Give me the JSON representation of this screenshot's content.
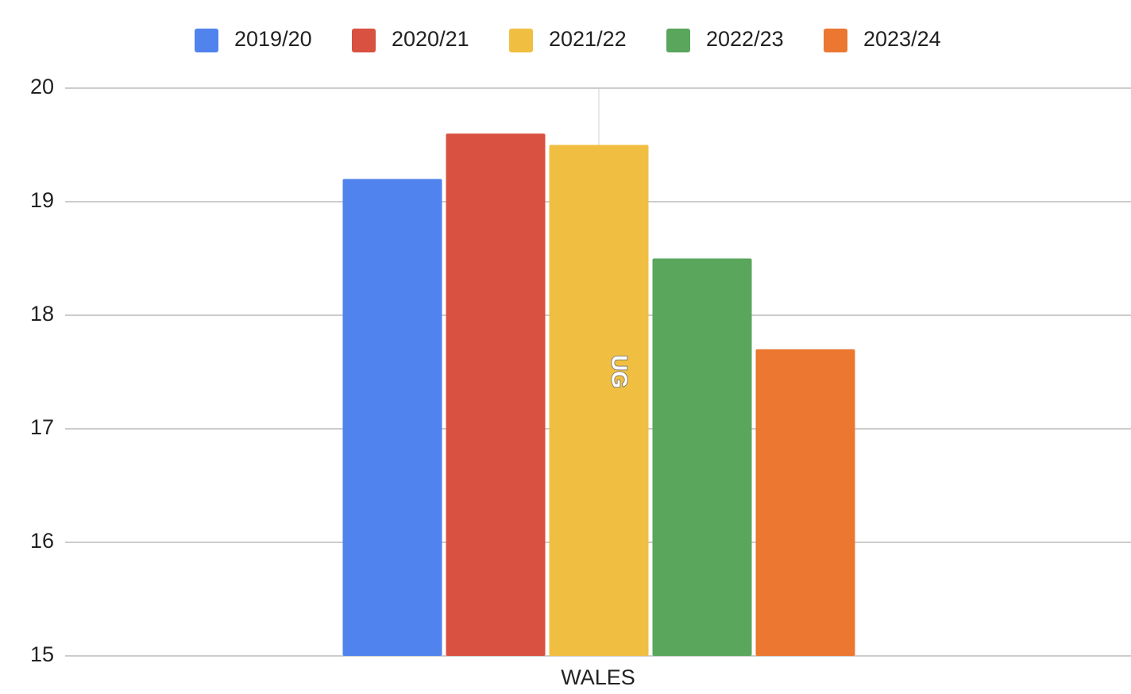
{
  "chart_data": {
    "type": "bar",
    "categories": [
      "WALES"
    ],
    "annotation": "UG",
    "series": [
      {
        "name": "2019/20",
        "color": "#5083ed",
        "values": [
          19.2
        ]
      },
      {
        "name": "2020/21",
        "color": "#d85141",
        "values": [
          19.6
        ]
      },
      {
        "name": "2021/22",
        "color": "#f0bf42",
        "values": [
          19.5
        ]
      },
      {
        "name": "2022/23",
        "color": "#59a65c",
        "values": [
          18.5
        ]
      },
      {
        "name": "2023/24",
        "color": "#eb7730",
        "values": [
          17.7
        ]
      }
    ],
    "ylim": [
      15,
      20
    ],
    "yticks": [
      15,
      16,
      17,
      18,
      19,
      20
    ],
    "grid": true,
    "legend": "top"
  }
}
